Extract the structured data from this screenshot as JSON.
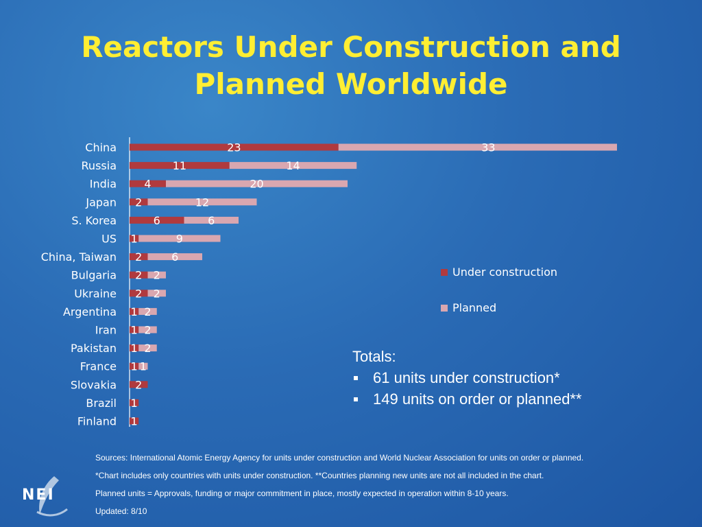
{
  "title": {
    "line1": "Reactors Under Construction and",
    "line2": "Planned Worldwide"
  },
  "chart_data": {
    "type": "bar",
    "orientation": "horizontal",
    "stacked": true,
    "categories": [
      "China",
      "Russia",
      "India",
      "Japan",
      "S. Korea",
      "US",
      "China, Taiwan",
      "Bulgaria",
      "Ukraine",
      "Argentina",
      "Iran",
      "Pakistan",
      "France",
      "Slovakia",
      "Brazil",
      "Finland"
    ],
    "series": [
      {
        "name": "Under construction",
        "color": "#b03a3e",
        "values": [
          23,
          11,
          4,
          2,
          6,
          1,
          2,
          2,
          2,
          1,
          1,
          1,
          1,
          2,
          1,
          1
        ]
      },
      {
        "name": "Planned",
        "color": "#d9a7b0",
        "values": [
          33,
          14,
          20,
          12,
          6,
          9,
          6,
          2,
          2,
          2,
          2,
          2,
          1,
          0,
          0,
          0
        ]
      }
    ],
    "legend_position": "right",
    "grid": false,
    "data_labels": true
  },
  "totals": {
    "heading": "Totals:",
    "items": [
      "61 units under construction*",
      "149 units on order or planned**"
    ]
  },
  "notes": [
    "Sources: International Atomic Energy Agency for units under construction and World Nuclear Association for units on order or planned.",
    "*Chart includes only countries with units under construction. **Countries planning new units are not all included in the chart.",
    "Planned units = Approvals, funding or major commitment in place, mostly expected in operation within 8-10 years.",
    "Updated: 8/10"
  ],
  "logo": {
    "text": "NEI"
  },
  "colors": {
    "background": "#2a6bb5",
    "title": "#ffee33",
    "text": "#ffffff"
  }
}
